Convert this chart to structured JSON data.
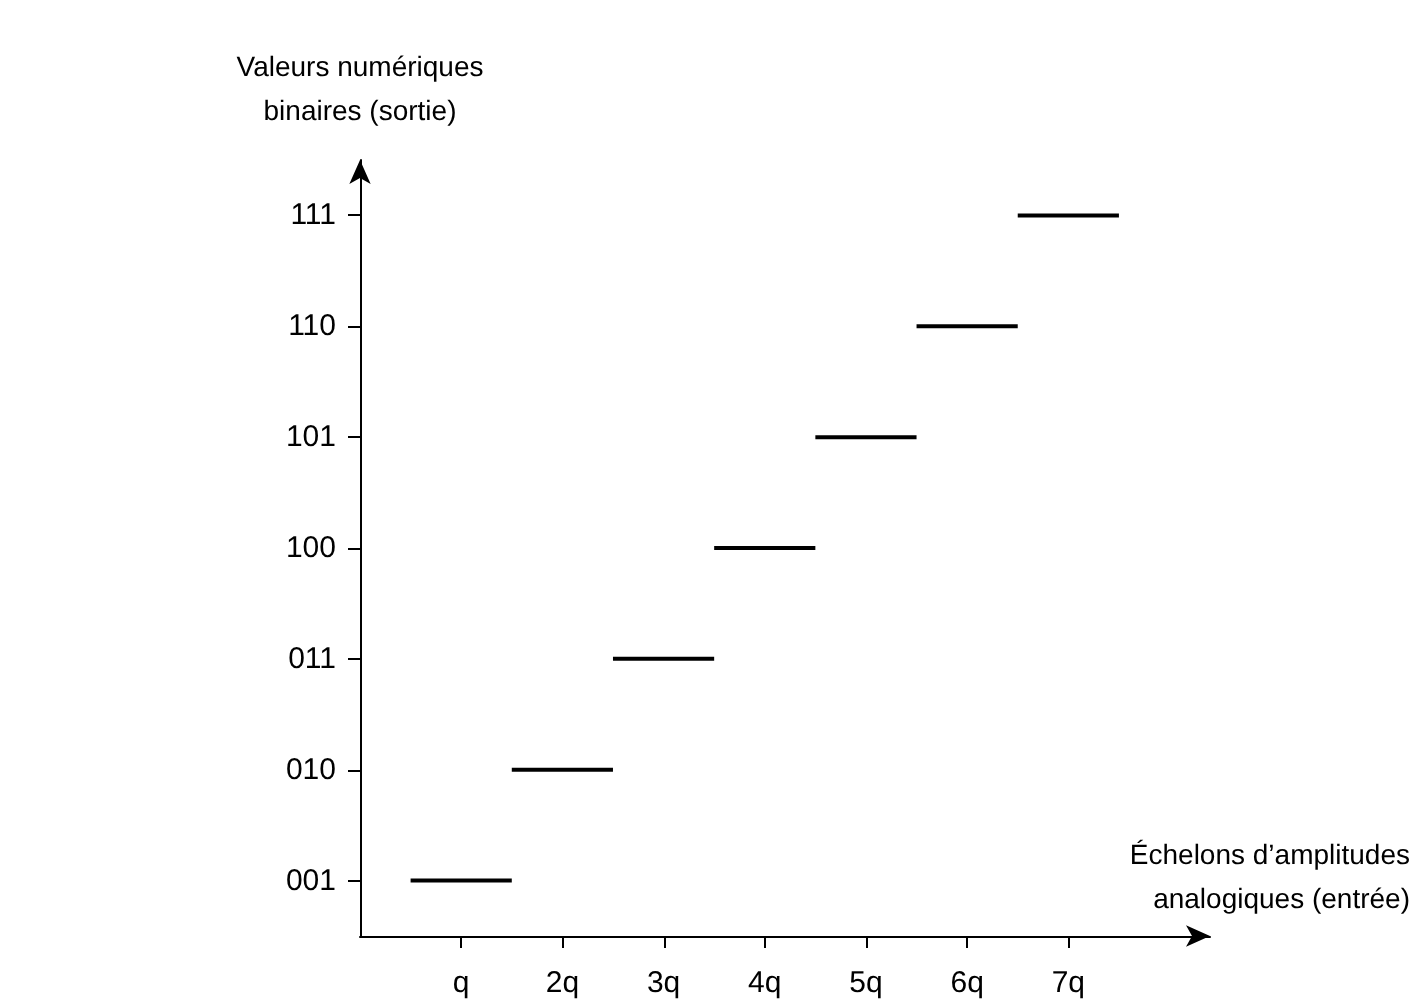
{
  "chart_data": {
    "type": "bar",
    "orientation": "horizontal",
    "xlabel": "Échelons d’amplitudes\nanalogiques (entrée)",
    "ylabel": "Valeurs numériques\nbinaires (sortie)",
    "categories": [
      "111",
      "110",
      "101",
      "100",
      "011",
      "010",
      "001"
    ],
    "xlim": [
      0,
      8.4
    ],
    "xticks": [
      {
        "value": 1,
        "label": "q"
      },
      {
        "value": 2,
        "label": "2q"
      },
      {
        "value": 3,
        "label": "3q"
      },
      {
        "value": 4,
        "label": "4q"
      },
      {
        "value": 5,
        "label": "5q"
      },
      {
        "value": 6,
        "label": "6q"
      },
      {
        "value": 7,
        "label": "7q"
      }
    ],
    "grid": false,
    "series": [
      {
        "color": "#000000",
        "base": [
          6.5,
          5.5,
          4.5,
          3.5,
          2.5,
          1.5,
          0.5
        ],
        "values": [
          1,
          1,
          1,
          1,
          1,
          1,
          1
        ]
      }
    ]
  }
}
